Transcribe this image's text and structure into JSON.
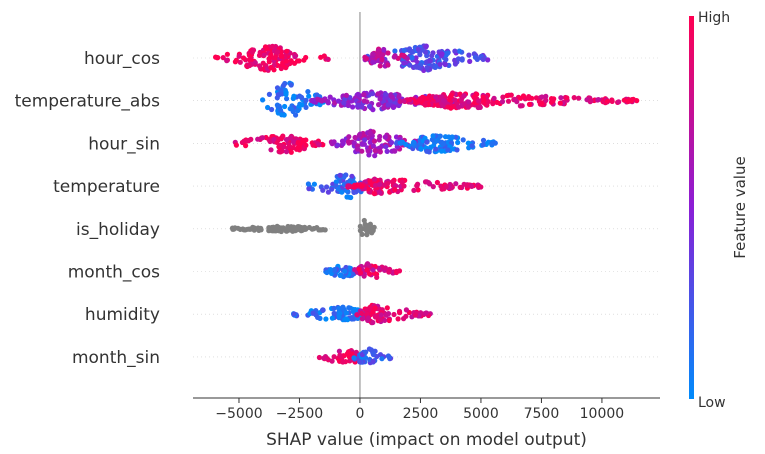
{
  "chart_data": {
    "type": "scatter",
    "subtype": "shap-beeswarm",
    "title": "",
    "xlabel": "SHAP value (impact on model output)",
    "xlim": [
      -6900,
      12400
    ],
    "xticks": [
      -5000,
      -2500,
      0,
      2500,
      5000,
      7500,
      10000
    ],
    "xtick_labels": [
      "−5000",
      "−2500",
      "0",
      "2500",
      "5000",
      "7500",
      "10000"
    ],
    "colorbar": {
      "title": "Feature value",
      "high_label": "High",
      "low_label": "Low",
      "high_color": "#ff0052",
      "mid_color": "#8b1ed6",
      "low_color": "#008bfb"
    },
    "missing_color": "#808080",
    "features": [
      {
        "name": "hour_cos",
        "segments": [
          {
            "from": -6000,
            "to": -1300,
            "peak": -3800,
            "width": 13,
            "value": 0.95
          },
          {
            "from": 300,
            "to": 5300,
            "peak": 2700,
            "width": 13,
            "value": 0.3
          },
          {
            "from": 200,
            "to": 2000,
            "peak": 800,
            "width": 10,
            "value": 0.7
          }
        ]
      },
      {
        "name": "temperature_abs",
        "segments": [
          {
            "from": -4100,
            "to": -1500,
            "peak": -3000,
            "width": 19,
            "value": 0.08
          },
          {
            "from": -2000,
            "to": 4000,
            "peak": 500,
            "width": 9,
            "value": 0.5
          },
          {
            "from": 2000,
            "to": 11500,
            "peak": 3500,
            "width": 8,
            "value": 0.9
          }
        ]
      },
      {
        "name": "hour_sin",
        "segments": [
          {
            "from": -5200,
            "to": -1500,
            "peak": -3000,
            "width": 10,
            "value": 0.95
          },
          {
            "from": -1200,
            "to": 2500,
            "peak": 500,
            "width": 13,
            "value": 0.6
          },
          {
            "from": 1500,
            "to": 5600,
            "peak": 3000,
            "width": 10,
            "value": 0.1
          }
        ]
      },
      {
        "name": "temperature",
        "segments": [
          {
            "from": -2200,
            "to": 400,
            "peak": -500,
            "width": 13,
            "value": 0.2
          },
          {
            "from": 0,
            "to": 5000,
            "peak": 500,
            "width": 8,
            "value": 0.9
          }
        ]
      },
      {
        "name": "is_holiday",
        "segments": [
          {
            "from": -5300,
            "to": -1400,
            "peak": -3000,
            "width": 3,
            "value": null
          },
          {
            "from": 0,
            "to": 600,
            "peak": 200,
            "width": 12,
            "value": null
          }
        ]
      },
      {
        "name": "month_cos",
        "segments": [
          {
            "from": -1500,
            "to": 300,
            "peak": -800,
            "width": 6,
            "value": 0.15
          },
          {
            "from": -300,
            "to": 1700,
            "peak": 300,
            "width": 8,
            "value": 0.85
          }
        ]
      },
      {
        "name": "humidity",
        "segments": [
          {
            "from": -2800,
            "to": 300,
            "peak": -500,
            "width": 8,
            "value": 0.12
          },
          {
            "from": -200,
            "to": 3000,
            "peak": 500,
            "width": 9,
            "value": 0.88
          }
        ]
      },
      {
        "name": "month_sin",
        "segments": [
          {
            "from": -1700,
            "to": 200,
            "peak": -500,
            "width": 8,
            "value": 0.9
          },
          {
            "from": -300,
            "to": 1300,
            "peak": 300,
            "width": 9,
            "value": 0.2
          }
        ]
      }
    ]
  }
}
